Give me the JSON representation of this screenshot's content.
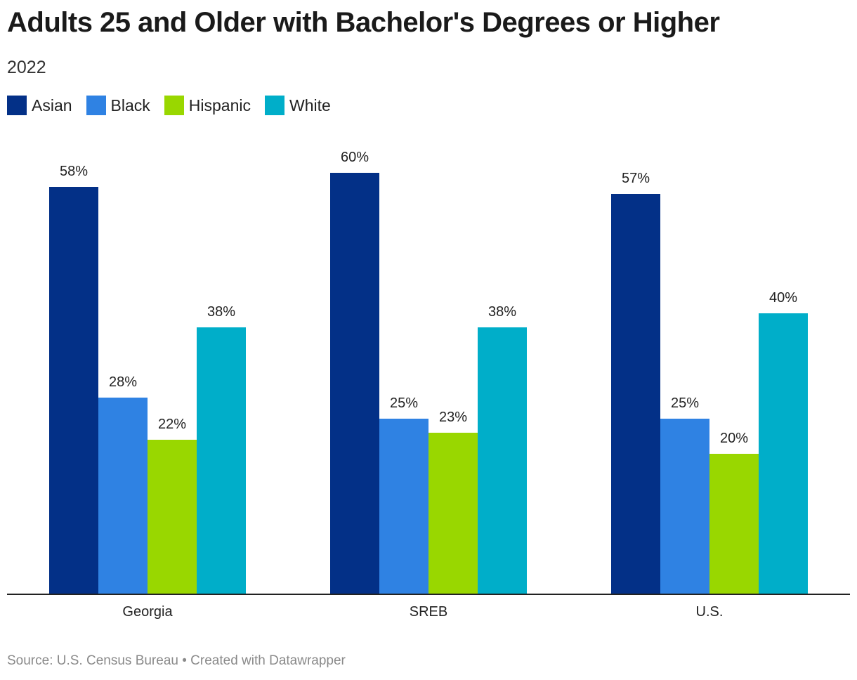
{
  "header": {
    "title": "Adults 25 and Older with Bachelor's Degrees or Higher",
    "subtitle": "2022"
  },
  "legend": {
    "items": [
      {
        "label": "Asian",
        "color": "#033087"
      },
      {
        "label": "Black",
        "color": "#2f82e3"
      },
      {
        "label": "Hispanic",
        "color": "#99d700"
      },
      {
        "label": "White",
        "color": "#00aec9"
      }
    ]
  },
  "footer": {
    "source": "Source: U.S. Census Bureau • Created with Datawrapper"
  },
  "chart_data": {
    "type": "bar",
    "categories": [
      "Georgia",
      "SREB",
      "U.S."
    ],
    "series": [
      {
        "name": "Asian",
        "color": "#033087",
        "values": [
          58,
          60,
          57
        ]
      },
      {
        "name": "Black",
        "color": "#2f82e3",
        "values": [
          28,
          25,
          25
        ]
      },
      {
        "name": "Hispanic",
        "color": "#99d700",
        "values": [
          22,
          23,
          20
        ]
      },
      {
        "name": "White",
        "color": "#00aec9",
        "values": [
          38,
          38,
          40
        ]
      }
    ],
    "value_suffix": "%",
    "ylim": [
      0,
      60
    ],
    "grid": false,
    "legend_position": "top-left"
  }
}
